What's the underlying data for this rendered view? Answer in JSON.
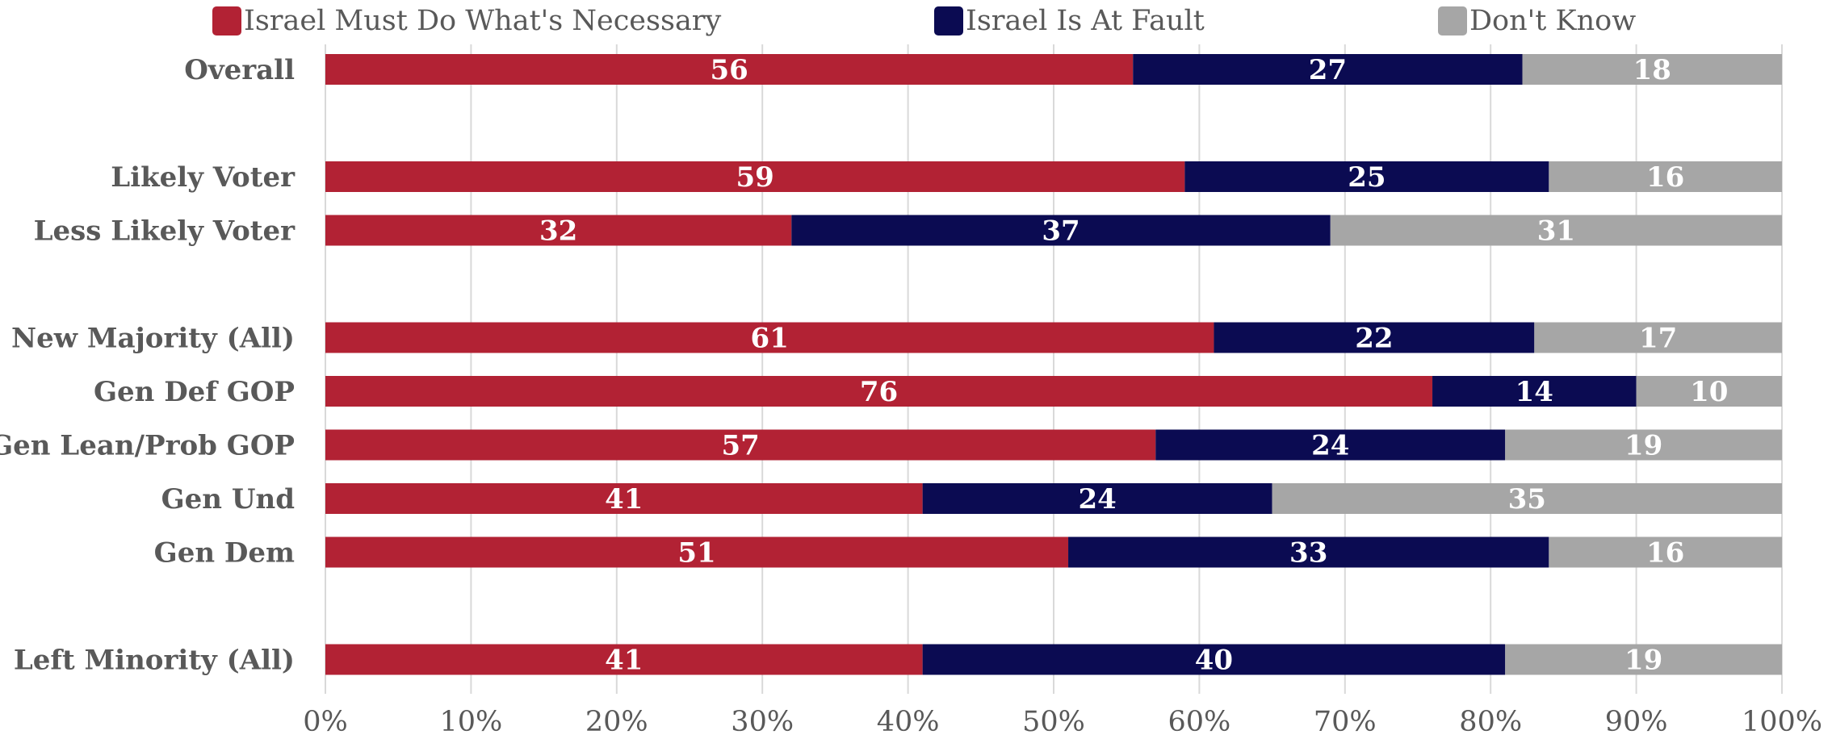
{
  "chart_data": {
    "type": "bar",
    "orientation": "horizontal",
    "stacked": true,
    "categories": [
      "Overall",
      "",
      "Likely Voter",
      "Less Likely Voter",
      "",
      "New Majority (All)",
      "Gen Def GOP",
      "Gen Lean/Prob GOP",
      "Gen Und",
      "Gen Dem",
      "",
      "Left Minority (All)"
    ],
    "series": [
      {
        "name": "Israel Must Do What's Necessary",
        "color": "#b22234",
        "values": [
          56,
          null,
          59,
          32,
          null,
          61,
          76,
          57,
          41,
          51,
          null,
          41
        ]
      },
      {
        "name": "Israel Is At Fault",
        "color": "#0b0b52",
        "values": [
          27,
          null,
          25,
          37,
          null,
          22,
          14,
          24,
          24,
          33,
          null,
          40
        ]
      },
      {
        "name": "Don't Know",
        "color": "#a6a6a6",
        "values": [
          18,
          null,
          16,
          31,
          null,
          17,
          10,
          19,
          35,
          16,
          null,
          19
        ]
      }
    ],
    "xlim": [
      0,
      100
    ],
    "x_ticks": [
      "0%",
      "10%",
      "20%",
      "30%",
      "40%",
      "50%",
      "60%",
      "70%",
      "80%",
      "90%",
      "100%"
    ],
    "legend_position": "top",
    "grid": true,
    "data_labels": true
  }
}
